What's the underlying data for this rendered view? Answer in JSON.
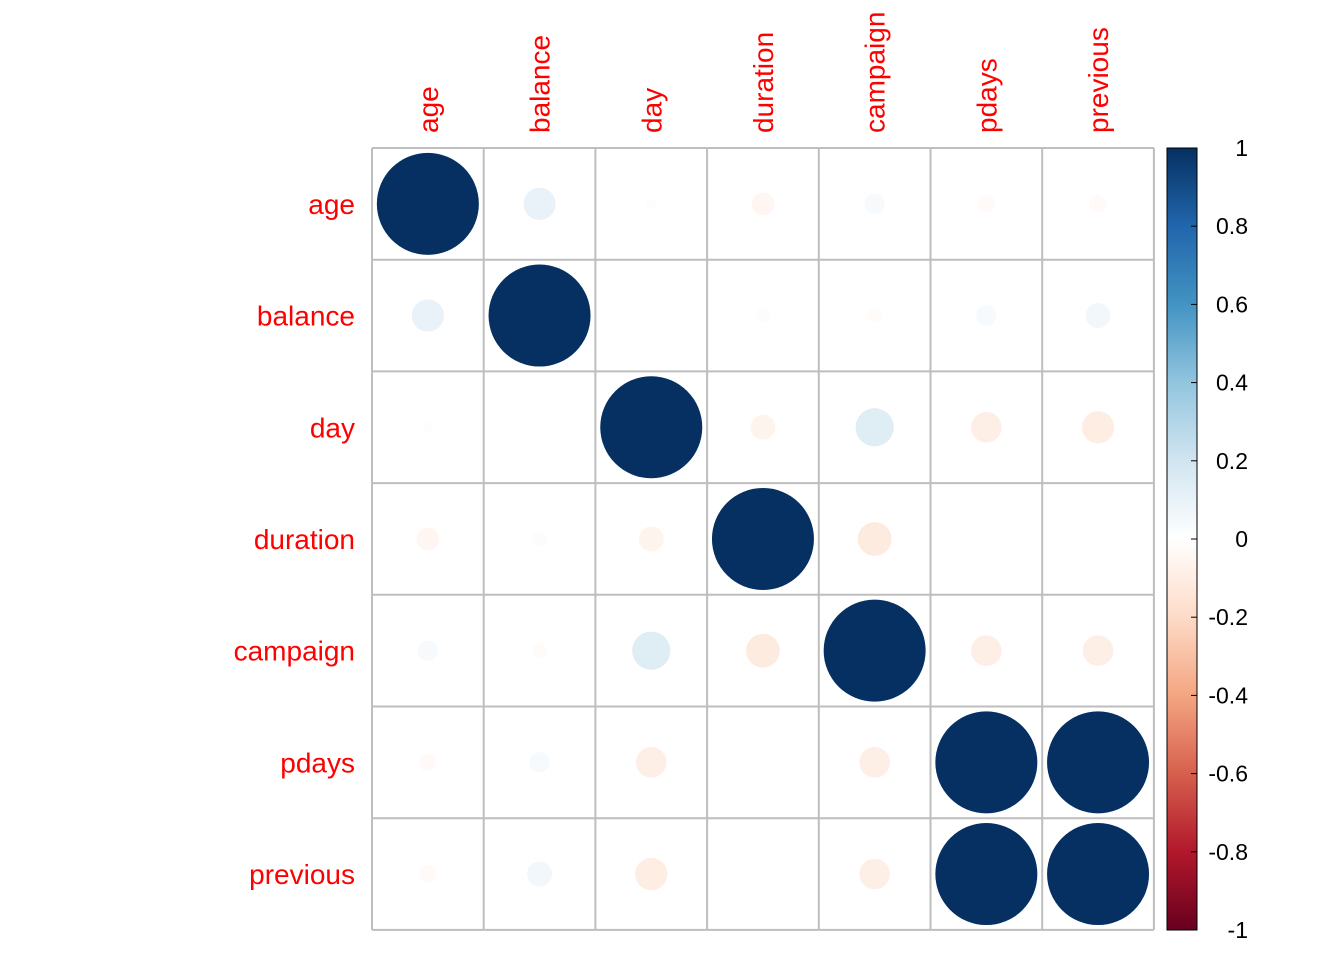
{
  "chart_data": {
    "type": "heatmap",
    "style": "correlation-circles",
    "variables": [
      "age",
      "balance",
      "day",
      "duration",
      "campaign",
      "pdays",
      "previous"
    ],
    "matrix": [
      [
        1.0,
        0.1,
        -0.01,
        -0.05,
        0.04,
        -0.03,
        -0.03
      ],
      [
        0.1,
        1.0,
        0.0,
        0.02,
        -0.02,
        0.04,
        0.06
      ],
      [
        -0.01,
        0.0,
        1.0,
        -0.06,
        0.14,
        -0.09,
        -0.1
      ],
      [
        -0.05,
        0.02,
        -0.06,
        1.0,
        -0.11,
        0.0,
        0.0
      ],
      [
        0.04,
        -0.02,
        0.14,
        -0.11,
        1.0,
        -0.09,
        -0.09
      ],
      [
        -0.03,
        0.04,
        -0.09,
        0.0,
        -0.09,
        1.0,
        1.0
      ],
      [
        -0.03,
        0.06,
        -0.1,
        0.0,
        -0.09,
        1.0,
        1.0
      ]
    ],
    "colorbar": {
      "ticks": [
        "1",
        "0.8",
        "0.6",
        "0.4",
        "0.2",
        "0",
        "-0.2",
        "-0.4",
        "-0.6",
        "-0.8",
        "-1"
      ],
      "range": [
        -1,
        1
      ],
      "colors": [
        "#67001F",
        "#B2182B",
        "#D6604D",
        "#F4A582",
        "#FDDBC7",
        "#FFFFFF",
        "#D1E5F0",
        "#92C5DE",
        "#4393C3",
        "#2166AC",
        "#053061"
      ]
    },
    "label_color": "#FF0000",
    "grid_color": "#BEBEBE"
  }
}
